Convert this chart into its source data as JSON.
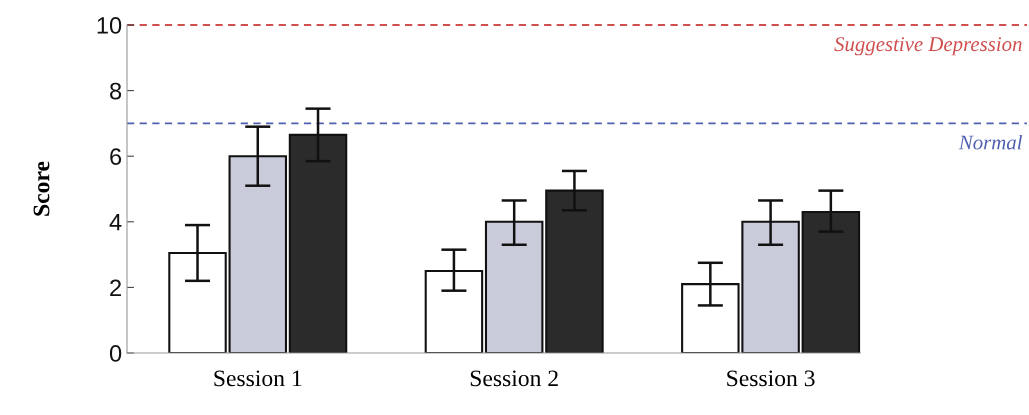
{
  "chart_data": {
    "type": "bar",
    "ylabel": "Score",
    "categories": [
      "Session 1",
      "Session 2",
      "Session 3"
    ],
    "series": [
      {
        "color": "#ffffff",
        "values": [
          3.05,
          2.5,
          2.1
        ],
        "errors": [
          [
            2.2,
            3.9
          ],
          [
            1.9,
            3.15
          ],
          [
            1.45,
            2.75
          ]
        ]
      },
      {
        "color": "#c9cbdb",
        "values": [
          6.0,
          4.0,
          4.0
        ],
        "errors": [
          [
            5.1,
            6.9
          ],
          [
            3.3,
            4.65
          ],
          [
            3.3,
            4.65
          ]
        ]
      },
      {
        "color": "#2b2b2b",
        "values": [
          6.65,
          4.95,
          4.3
        ],
        "errors": [
          [
            5.85,
            7.45
          ],
          [
            4.35,
            5.55
          ],
          [
            3.7,
            4.95
          ]
        ]
      }
    ],
    "ylim": [
      0,
      10
    ],
    "yticks": [
      0,
      2,
      4,
      6,
      8,
      10
    ],
    "grid": false,
    "legend": false,
    "ref_lines": [
      {
        "axis": "y",
        "value": 10,
        "label": "Suggestive Depression",
        "color": "#d05050",
        "line_style": "dashed"
      },
      {
        "axis": "y",
        "value": 7,
        "label": "Normal",
        "color": "#5060b0",
        "line_style": "dashed"
      }
    ]
  }
}
